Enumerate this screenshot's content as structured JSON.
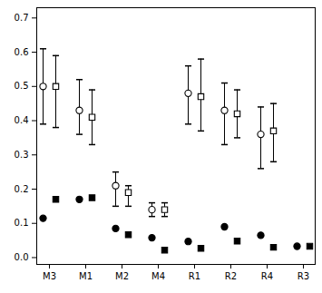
{
  "chart_data": {
    "type": "scatter",
    "categories": [
      "M3",
      "M1",
      "M2",
      "M4",
      "R1",
      "R2",
      "R4",
      "R3"
    ],
    "series": [
      {
        "color": "#000000",
        "marker": "circle_open",
        "values": [
          0.5,
          0.43,
          0.21,
          0.14,
          0.48,
          0.43,
          0.36,
          null
        ],
        "lower": [
          0.39,
          0.36,
          0.15,
          0.12,
          0.39,
          0.33,
          0.26,
          null
        ],
        "upper": [
          0.61,
          0.52,
          0.25,
          0.16,
          0.56,
          0.51,
          0.44,
          null
        ]
      },
      {
        "color": "#000000",
        "marker": "square_open",
        "values": [
          0.5,
          0.41,
          0.19,
          0.14,
          0.47,
          0.42,
          0.37,
          null
        ],
        "lower": [
          0.38,
          0.33,
          0.15,
          0.12,
          0.37,
          0.35,
          0.28,
          null
        ],
        "upper": [
          0.59,
          0.49,
          0.21,
          0.16,
          0.58,
          0.49,
          0.45,
          null
        ]
      },
      {
        "color": "#000000",
        "marker": "circle",
        "values": [
          0.115,
          0.17,
          0.085,
          0.058,
          0.047,
          0.09,
          0.065,
          0.033
        ]
      },
      {
        "color": "#000000",
        "marker": "square",
        "values": [
          0.17,
          0.175,
          0.067,
          0.022,
          0.027,
          0.048,
          0.03,
          0.033
        ]
      }
    ],
    "ylim": [
      -0.02,
      0.73
    ],
    "yticks": [
      {
        "value": 0,
        "label": "0.0"
      },
      0.1,
      0.2,
      0.3,
      0.4,
      0.5,
      0.6,
      0.7
    ],
    "grid": false
  }
}
